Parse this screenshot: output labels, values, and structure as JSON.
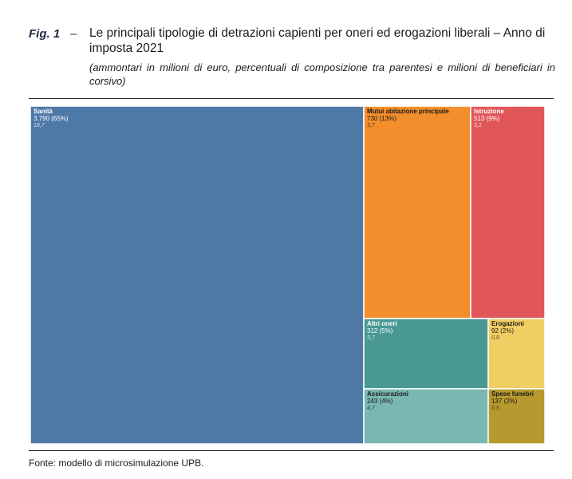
{
  "figure": {
    "number": "Fig. 1",
    "dash": "–",
    "title": "Le principali tipologie di detrazioni capienti per oneri ed erogazioni liberali – Anno di imposta 2021",
    "subtitle": "(ammontari in milioni di euro, percentuali di composizione tra parentesi e milioni di beneficiari in corsivo)",
    "source": "Fonte: modello di microsimulazione UPB."
  },
  "chart_data": {
    "type": "treemap",
    "title": "",
    "items": [
      {
        "name": "Sanità",
        "value_label": "3.790 (65%)",
        "beneficiaries": "18,7",
        "color": "#4e79a7",
        "text_color": "#ffffff"
      },
      {
        "name": "Mutui abitazione principale",
        "value_label": "730 (13%)",
        "beneficiaries": "3,7",
        "color": "#f28e2b",
        "text_color": "#1a1a1a"
      },
      {
        "name": "Istruzione",
        "value_label": "513 (9%)",
        "beneficiaries": "3,1",
        "color": "#e15759",
        "text_color": "#ffffff"
      },
      {
        "name": "Altri oneri",
        "value_label": "312 (5%)",
        "beneficiaries": "3,7",
        "color": "#499894",
        "text_color": "#ffffff"
      },
      {
        "name": "Erogazioni",
        "value_label": "92 (2%)",
        "beneficiaries": "0,9",
        "color": "#f1ce63",
        "text_color": "#1a1a1a"
      },
      {
        "name": "Assicurazioni",
        "value_label": "243 (4%)",
        "beneficiaries": "4,7",
        "color": "#79b7b2",
        "text_color": "#1a1a1a"
      },
      {
        "name": "Spese funebri",
        "value_label": "137 (2%)",
        "beneficiaries": "0,5",
        "color": "#b69a2f",
        "text_color": "#1a1a1a"
      }
    ]
  }
}
